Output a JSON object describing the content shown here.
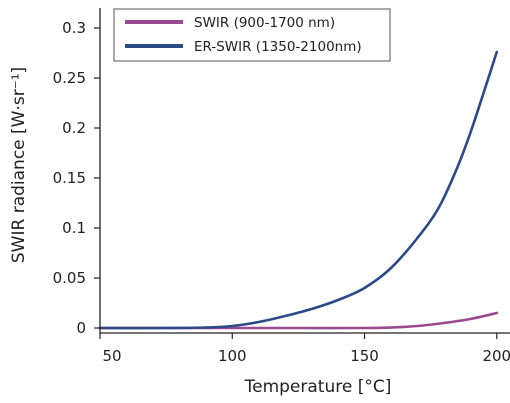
{
  "chart_data": {
    "type": "line",
    "xlabel": "Temperature [°C]",
    "ylabel": "SWIR radiance [W·sr⁻¹]",
    "xlim": [
      50,
      205
    ],
    "ylim": [
      -0.005,
      0.32
    ],
    "x_ticks": [
      "50",
      "100",
      "150",
      "200"
    ],
    "y_ticks": [
      "0",
      "0.05",
      "0.1",
      "0.15",
      "0.2",
      "0.25",
      "0.3"
    ],
    "legend_position": "top-left",
    "grid": false,
    "series": [
      {
        "name": "SWIR (900-1700 nm)",
        "color": "#9a4a8e",
        "x": [
          50,
          75,
          100,
          125,
          150,
          160,
          170,
          180,
          190,
          200
        ],
        "y": [
          0.0,
          0.0,
          0.0,
          0.0,
          0.0,
          0.0005,
          0.002,
          0.005,
          0.009,
          0.015
        ]
      },
      {
        "name": "ER-SWIR (1350-2100nm)",
        "color": "#2c4a87",
        "x": [
          50,
          75,
          90,
          100,
          110,
          120,
          130,
          140,
          150,
          160,
          170,
          178,
          185,
          190,
          195,
          200
        ],
        "y": [
          0.0,
          0.0,
          0.0005,
          0.002,
          0.006,
          0.012,
          0.019,
          0.028,
          0.04,
          0.06,
          0.09,
          0.12,
          0.16,
          0.195,
          0.235,
          0.276
        ]
      }
    ]
  }
}
